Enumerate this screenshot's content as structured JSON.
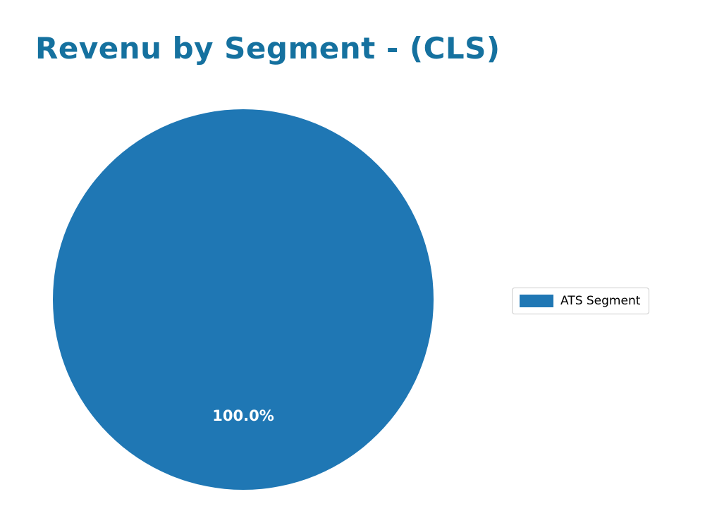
{
  "title": "Revenu by Segment - (CLS)",
  "title_color": "#15719f",
  "chart_data": {
    "type": "pie",
    "title": "Revenu by Segment - (CLS)",
    "labels": [
      "ATS Segment"
    ],
    "values": [
      100.0
    ],
    "autopct_labels": [
      "100.0%"
    ],
    "colors": [
      "#1f77b4"
    ],
    "legend_position": "center right",
    "pct_label_color": "#ffffff"
  },
  "legend": {
    "items": [
      {
        "label": "ATS Segment",
        "color": "#1f77b4"
      }
    ]
  }
}
